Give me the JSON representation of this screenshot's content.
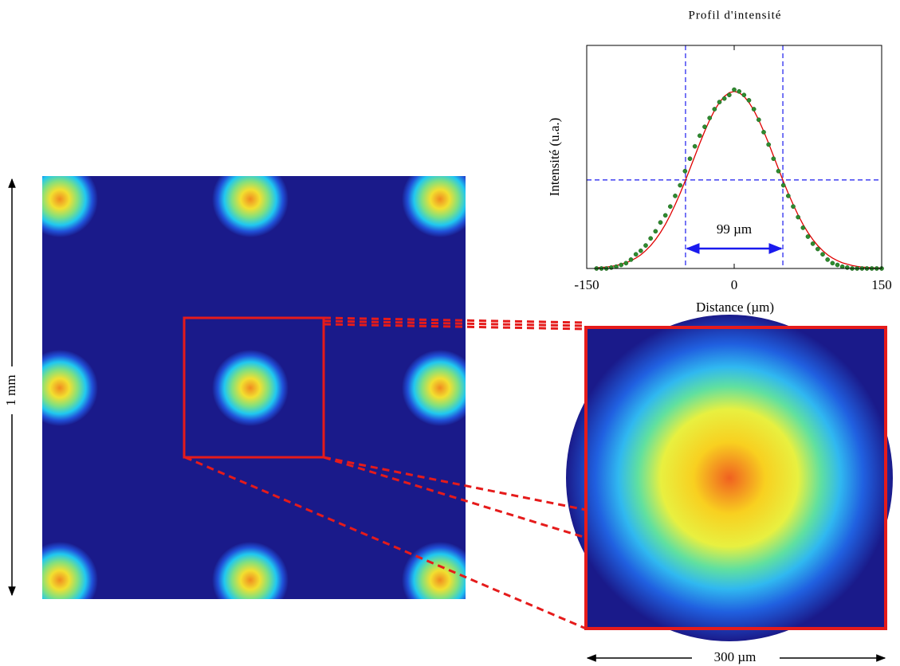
{
  "chart_data": {
    "type": "scatter",
    "title": "Profil d'intensité",
    "xlabel": "Distance (µm)",
    "ylabel": "Intensité (u.a.)",
    "xlim": [
      -150,
      150
    ],
    "ylim": [
      0,
      1.26
    ],
    "xticks": [
      -150,
      0,
      150
    ],
    "x": [
      -140,
      -135,
      -130,
      -125,
      -120,
      -115,
      -110,
      -105,
      -100,
      -95,
      -90,
      -85,
      -80,
      -75,
      -70,
      -65,
      -60,
      -55,
      -50,
      -45,
      -40,
      -35,
      -30,
      -25,
      -20,
      -15,
      -10,
      -5,
      0,
      5,
      10,
      15,
      20,
      25,
      30,
      35,
      40,
      45,
      50,
      55,
      60,
      65,
      70,
      75,
      80,
      85,
      90,
      95,
      100,
      105,
      110,
      115,
      120,
      125,
      130,
      135,
      140,
      145,
      150
    ],
    "series": [
      {
        "style": "points",
        "color": "#2e8b2e",
        "values": [
          0,
          0,
          0,
          0.005,
          0.01,
          0.02,
          0.03,
          0.05,
          0.08,
          0.1,
          0.13,
          0.17,
          0.21,
          0.26,
          0.3,
          0.35,
          0.41,
          0.47,
          0.55,
          0.62,
          0.69,
          0.75,
          0.8,
          0.85,
          0.9,
          0.94,
          0.96,
          0.98,
          1.01,
          1.0,
          0.98,
          0.95,
          0.9,
          0.84,
          0.77,
          0.7,
          0.62,
          0.55,
          0.47,
          0.41,
          0.35,
          0.29,
          0.23,
          0.18,
          0.14,
          0.11,
          0.08,
          0.05,
          0.03,
          0.02,
          0.01,
          0.005,
          0,
          0,
          0,
          0,
          0,
          0,
          0
        ]
      },
      {
        "style": "line",
        "color": "#e00000",
        "values": [
          0.004,
          0.006,
          0.008,
          0.012,
          0.017,
          0.024,
          0.032,
          0.044,
          0.059,
          0.077,
          0.101,
          0.129,
          0.163,
          0.203,
          0.249,
          0.302,
          0.361,
          0.424,
          0.492,
          0.563,
          0.635,
          0.707,
          0.775,
          0.838,
          0.893,
          0.938,
          0.972,
          0.993,
          1,
          0.993,
          0.972,
          0.938,
          0.893,
          0.838,
          0.775,
          0.707,
          0.635,
          0.563,
          0.492,
          0.424,
          0.361,
          0.302,
          0.249,
          0.203,
          0.163,
          0.129,
          0.101,
          0.077,
          0.059,
          0.044,
          0.032,
          0.024,
          0.017,
          0.012,
          0.008,
          0.006,
          0.004,
          0.003,
          0.002
        ]
      }
    ],
    "fwhm": {
      "label": "99 µm",
      "x": [
        -49.5,
        49.5
      ],
      "y": 0.5,
      "color": "#1a1aee"
    }
  },
  "scale_bars": {
    "vertical": "1 mm",
    "horizontal": "300 µm"
  }
}
